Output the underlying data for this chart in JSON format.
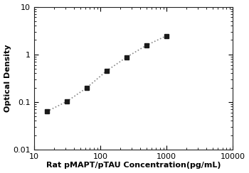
{
  "x": [
    15.625,
    31.25,
    62.5,
    125,
    250,
    500,
    1000
  ],
  "y": [
    0.063,
    0.102,
    0.198,
    0.45,
    0.87,
    1.55,
    2.45
  ],
  "xlabel": "Rat pMAPT/pTAU Concentration(pg/mL)",
  "ylabel": "Optical Density",
  "xlim": [
    10,
    10000
  ],
  "ylim": [
    0.01,
    10
  ],
  "xticks": [
    10,
    100,
    1000,
    10000
  ],
  "yticks": [
    0.01,
    0.1,
    1,
    10
  ],
  "marker": "s",
  "marker_color": "#1a1a1a",
  "marker_size": 5,
  "line_color": "#888888",
  "line_style": ":",
  "line_width": 1.2,
  "background_color": "#ffffff",
  "label_fontsize": 8,
  "tick_fontsize": 8
}
